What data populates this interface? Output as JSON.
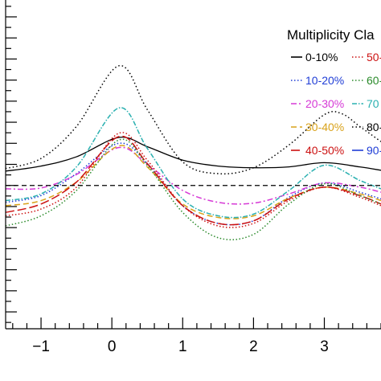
{
  "chart_data": {
    "type": "line",
    "title": "",
    "xlabel": "",
    "ylabel": "",
    "xlim": [
      -1.5,
      3.8
    ],
    "ylim": [
      -0.17,
      0.22
    ],
    "xticks": [
      -1,
      0,
      1,
      2,
      3
    ],
    "xtick_labels": [
      "−1",
      "0",
      "1",
      "2",
      "3"
    ],
    "reference_line": {
      "y": 0,
      "style": "dashed"
    },
    "legend": {
      "title": "Multiplicity Cla",
      "placement": "top-right"
    },
    "series": [
      {
        "name": "0-10%",
        "color": "#000000",
        "dash": "",
        "x": [
          -1.5,
          -1.0,
          -0.5,
          0.1,
          0.5,
          1.0,
          1.5,
          2.0,
          2.5,
          3.0,
          3.5,
          3.8
        ],
        "y": [
          0.017,
          0.023,
          0.034,
          0.057,
          0.046,
          0.03,
          0.023,
          0.021,
          0.022,
          0.027,
          0.022,
          0.018
        ]
      },
      {
        "name": "10-20%",
        "color": "#1f3dd6",
        "dash": "1.5,2.5",
        "x": [
          -1.5,
          -1.0,
          -0.5,
          0.1,
          0.5,
          1.0,
          1.5,
          2.0,
          2.5,
          3.0,
          3.5,
          3.8
        ],
        "y": [
          -0.02,
          -0.012,
          0.014,
          0.05,
          0.026,
          -0.024,
          -0.045,
          -0.042,
          -0.014,
          0.003,
          -0.008,
          -0.016
        ]
      },
      {
        "name": "20-30%",
        "color": "#d63ad6",
        "dash": "7,3,2,3",
        "x": [
          -1.5,
          -1.0,
          -0.5,
          0.1,
          0.5,
          1.0,
          1.5,
          2.0,
          2.5,
          3.0,
          3.5,
          3.8
        ],
        "y": [
          -0.004,
          -0.003,
          0.013,
          0.045,
          0.025,
          -0.006,
          -0.02,
          -0.021,
          -0.01,
          0.003,
          -0.002,
          -0.008
        ]
      },
      {
        "name": "30-40%",
        "color": "#d9a21a",
        "dash": "7,4",
        "x": [
          -1.5,
          -1.0,
          -0.5,
          0.1,
          0.5,
          1.0,
          1.5,
          2.0,
          2.5,
          3.0,
          3.5,
          3.8
        ],
        "y": [
          -0.024,
          -0.018,
          0.004,
          0.047,
          0.022,
          -0.022,
          -0.038,
          -0.036,
          -0.015,
          -0.002,
          -0.01,
          -0.018
        ]
      },
      {
        "name": "40-50%",
        "color": "#cc1111",
        "dash": "11,4",
        "x": [
          -1.5,
          -1.0,
          -0.5,
          0.1,
          0.5,
          1.0,
          1.5,
          2.0,
          2.5,
          3.0,
          3.5,
          3.8
        ],
        "y": [
          -0.032,
          -0.022,
          0.004,
          0.058,
          0.026,
          -0.024,
          -0.045,
          -0.042,
          -0.016,
          -0.002,
          -0.012,
          -0.022
        ]
      },
      {
        "name": "50-",
        "color": "#cc1111",
        "dash": "1.5,2.5",
        "x": [
          -1.5,
          -1.0,
          -0.5,
          0.1,
          0.5,
          1.0,
          1.5,
          2.0,
          2.5,
          3.0,
          3.5,
          3.8
        ],
        "y": [
          -0.036,
          -0.028,
          -0.002,
          0.062,
          0.03,
          -0.024,
          -0.048,
          -0.045,
          -0.018,
          -0.002,
          -0.014,
          -0.024
        ]
      },
      {
        "name": "60-",
        "color": "#2a8a2a",
        "dash": "1.5,2.5",
        "x": [
          -1.5,
          -1.0,
          -0.5,
          0.1,
          0.5,
          1.0,
          1.5,
          2.0,
          2.5,
          3.0,
          3.5,
          3.8
        ],
        "y": [
          -0.048,
          -0.036,
          -0.006,
          0.054,
          0.024,
          -0.032,
          -0.062,
          -0.058,
          -0.022,
          0.002,
          -0.012,
          -0.022
        ]
      },
      {
        "name": "70",
        "color": "#2ab0b0",
        "dash": "6,2,1.5,2",
        "x": [
          -1.5,
          -1.0,
          -0.5,
          0.1,
          0.5,
          1.0,
          1.5,
          2.0,
          2.5,
          3.0,
          3.5,
          3.8
        ],
        "y": [
          -0.018,
          -0.01,
          0.022,
          0.092,
          0.044,
          -0.016,
          -0.036,
          -0.034,
          -0.006,
          0.024,
          0.006,
          -0.004
        ]
      },
      {
        "name": "80-",
        "color": "#000000",
        "dash": "1.5,3",
        "x": [
          -1.5,
          -1.0,
          -0.5,
          0.1,
          0.5,
          1.0,
          1.5,
          2.0,
          2.5,
          3.0,
          3.25,
          3.5,
          3.8
        ],
        "y": [
          0.02,
          0.032,
          0.07,
          0.142,
          0.09,
          0.028,
          0.014,
          0.021,
          0.048,
          0.084,
          0.085,
          0.07,
          0.052
        ]
      },
      {
        "name": "90-",
        "color": "#1f3dd6",
        "dash": "",
        "x": [],
        "y": []
      }
    ]
  }
}
